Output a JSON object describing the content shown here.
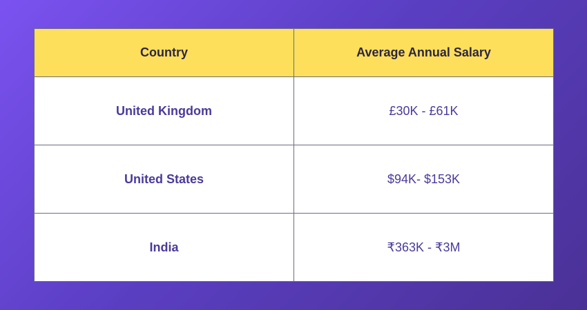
{
  "table": {
    "headers": [
      "Country",
      "Average Annual Salary"
    ],
    "rows": [
      {
        "country": "United Kingdom",
        "salary": "£30K - £61K"
      },
      {
        "country": "United States",
        "salary": "$94K- $153K"
      },
      {
        "country": "India",
        "salary": "₹363K - ₹3M"
      }
    ]
  },
  "colors": {
    "background_start": "#7b52f0",
    "background_end": "#4a3196",
    "header_bg": "#fddf5b",
    "header_text": "#2d2540",
    "cell_text": "#4b3a9b",
    "cell_bg": "#ffffff",
    "border": "#6c6a86"
  }
}
